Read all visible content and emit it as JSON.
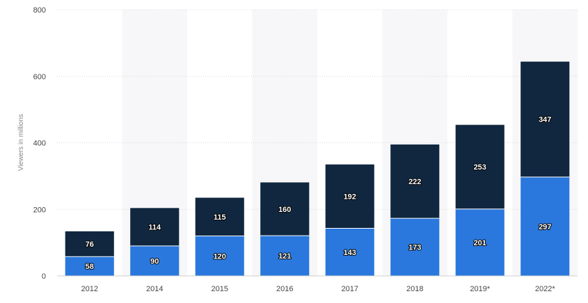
{
  "chart_data": {
    "type": "bar",
    "stacked": true,
    "categories": [
      "2012",
      "2014",
      "2015",
      "2016",
      "2017",
      "2018",
      "2019*",
      "2022*"
    ],
    "series": [
      {
        "values": [
          58,
          90,
          120,
          121,
          143,
          173,
          201,
          297
        ],
        "color": "#2a78dd"
      },
      {
        "values": [
          76,
          114,
          115,
          160,
          192,
          222,
          253,
          347
        ],
        "color": "#10273f"
      }
    ],
    "ylabel": "Viewers in millions",
    "ylim": [
      0,
      800
    ],
    "yticks": [
      0,
      200,
      400,
      600,
      800
    ],
    "grid": true,
    "alternating_band_color": "#f7f7f9"
  }
}
